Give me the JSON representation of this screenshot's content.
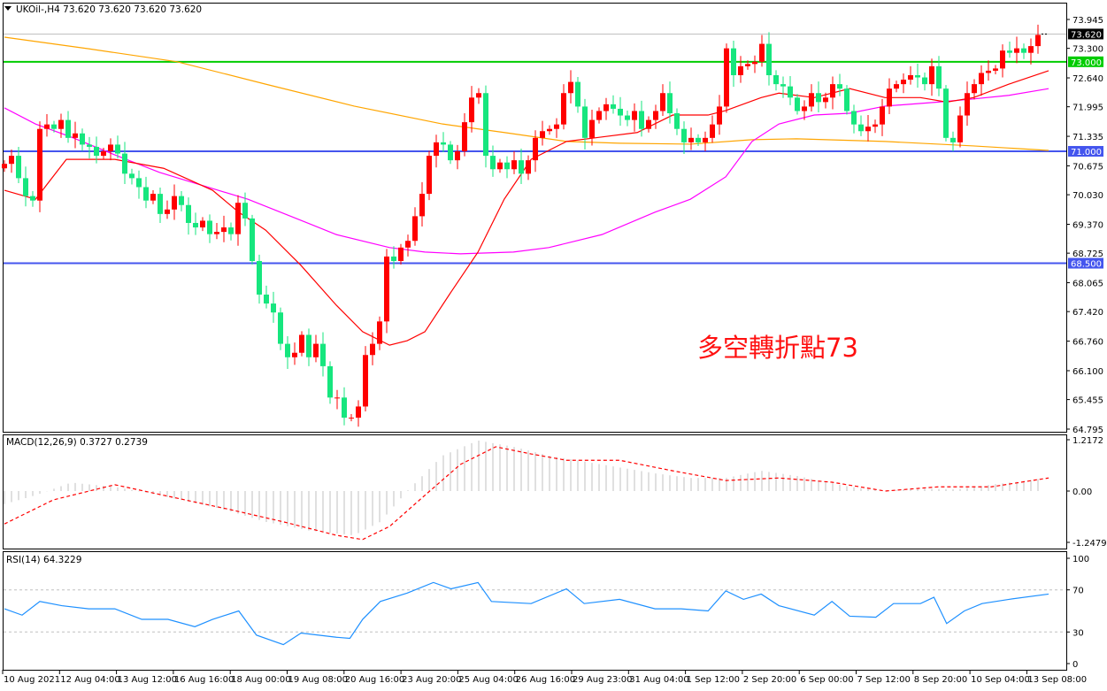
{
  "header": {
    "symbol_line": "UKOil-,H4  73.620 73.620 73.620 73.620"
  },
  "annotation": "多空轉折點73",
  "colors": {
    "bull": "#ff0000",
    "bear": "#16e67e",
    "ma_fast": "#ff0000",
    "ma_mid": "#ff00ff",
    "ma_slow": "#ffa500",
    "level_green": "#00cc00",
    "level_blue": "#4455ee",
    "macd_hist": "#c0c0c0",
    "macd_signal": "#ff0000",
    "rsi": "#1e90ff"
  },
  "chart_data": [
    {
      "type": "candlestick",
      "title": "UKOil-,H4",
      "x_tick_labels": [
        "10 Aug 2021",
        "12 Aug 04:00",
        "13 Aug 12:00",
        "16 Aug 16:00",
        "18 Aug 00:00",
        "19 Aug 08:00",
        "20 Aug 16:00",
        "23 Aug 20:00",
        "25 Aug 04:00",
        "26 Aug 16:00",
        "29 Aug 23:00",
        "31 Aug 04:00",
        "1 Sep 12:00",
        "2 Sep 20:00",
        "6 Sep 00:00",
        "7 Sep 12:00",
        "8 Sep 20:00",
        "10 Sep 04:00",
        "13 Sep 08:00"
      ],
      "y_tick_labels": [
        "73.945",
        "73.300",
        "72.640",
        "71.995",
        "71.335",
        "70.675",
        "70.030",
        "69.370",
        "68.725",
        "68.065",
        "67.420",
        "66.760",
        "66.100",
        "65.455",
        "64.795"
      ],
      "ylim": [
        64.795,
        73.945
      ],
      "close": [
        70.72,
        70.9,
        70.4,
        70.0,
        69.9,
        71.5,
        71.6,
        71.5,
        71.7,
        71.3,
        71.4,
        71.15,
        71.1,
        70.9,
        71.0,
        71.15,
        70.95,
        70.5,
        70.4,
        70.2,
        69.9,
        70.05,
        69.6,
        69.7,
        70.0,
        69.8,
        69.4,
        69.3,
        69.45,
        69.15,
        69.2,
        69.3,
        69.15,
        69.85,
        69.5,
        68.55,
        67.8,
        67.6,
        67.4,
        66.7,
        66.4,
        66.5,
        66.9,
        66.4,
        66.7,
        66.2,
        65.5,
        65.5,
        65.05,
        65.05,
        65.3,
        66.45,
        66.7,
        67.2,
        68.65,
        68.55,
        68.85,
        69.0,
        69.55,
        70.05,
        70.9,
        71.2,
        71.15,
        70.8,
        71.0,
        71.65,
        72.2,
        72.3,
        70.9,
        70.6,
        70.75,
        70.6,
        70.8,
        70.5,
        70.8,
        71.3,
        71.45,
        71.5,
        71.6,
        72.3,
        72.55,
        72.0,
        71.3,
        71.7,
        71.9,
        72.05,
        71.95,
        71.8,
        71.7,
        71.9,
        71.5,
        71.7,
        71.9,
        72.3,
        71.85,
        71.5,
        71.2,
        71.3,
        71.2,
        71.3,
        71.6,
        72.0,
        73.3,
        72.7,
        72.9,
        72.95,
        73.0,
        73.4,
        72.7,
        72.5,
        72.45,
        72.2,
        71.9,
        72.0,
        72.3,
        72.1,
        72.2,
        72.5,
        72.4,
        71.9,
        71.6,
        71.45,
        71.55,
        71.6,
        72.0,
        72.4,
        72.5,
        72.6,
        72.7,
        72.65,
        72.5,
        72.9,
        72.4,
        71.3,
        71.2,
        71.8,
        72.3,
        72.5,
        72.75,
        72.8,
        72.85,
        73.25,
        73.2,
        73.3,
        73.2,
        73.35,
        73.6
      ],
      "moving_averages": {
        "fast": [
          [
            0,
            70.13
          ],
          [
            4.4,
            69.93
          ],
          [
            8.75,
            70.82
          ],
          [
            15.6,
            70.82
          ],
          [
            22.5,
            70.62
          ],
          [
            29.4,
            70.13
          ],
          [
            33.1,
            69.64
          ],
          [
            36.9,
            69.24
          ],
          [
            41.9,
            68.45
          ],
          [
            46.9,
            67.56
          ],
          [
            50.6,
            66.97
          ],
          [
            54.4,
            66.67
          ],
          [
            56.9,
            66.77
          ],
          [
            59.4,
            66.97
          ],
          [
            63.1,
            67.86
          ],
          [
            66.9,
            68.75
          ],
          [
            70.6,
            69.93
          ],
          [
            74.4,
            70.82
          ],
          [
            79.4,
            71.22
          ],
          [
            84.4,
            71.32
          ],
          [
            89.4,
            71.42
          ],
          [
            94.4,
            71.81
          ],
          [
            99.4,
            71.81
          ],
          [
            101.9,
            71.91
          ],
          [
            106.9,
            72.2
          ],
          [
            109.4,
            72.3
          ],
          [
            114.4,
            72.2
          ],
          [
            119.4,
            72.4
          ],
          [
            124.4,
            72.2
          ],
          [
            129.4,
            72.2
          ],
          [
            133.1,
            72.1
          ],
          [
            136.9,
            72.2
          ],
          [
            141.9,
            72.5
          ],
          [
            147.5,
            72.8
          ]
        ],
        "mid": [
          [
            0,
            71.97
          ],
          [
            4.4,
            71.61
          ],
          [
            9.4,
            71.32
          ],
          [
            15.6,
            70.92
          ],
          [
            21.9,
            70.53
          ],
          [
            28.1,
            70.23
          ],
          [
            34.4,
            69.93
          ],
          [
            40.6,
            69.54
          ],
          [
            46.9,
            69.14
          ],
          [
            54.4,
            68.85
          ],
          [
            59.4,
            68.75
          ],
          [
            64.4,
            68.71
          ],
          [
            71.9,
            68.75
          ],
          [
            76.9,
            68.85
          ],
          [
            84.4,
            69.14
          ],
          [
            91.9,
            69.64
          ],
          [
            96.9,
            69.93
          ],
          [
            101.9,
            70.43
          ],
          [
            105.6,
            71.22
          ],
          [
            109.4,
            71.61
          ],
          [
            114.4,
            71.81
          ],
          [
            119.4,
            71.85
          ],
          [
            124.4,
            72.01
          ],
          [
            131.9,
            72.1
          ],
          [
            136.9,
            72.17
          ],
          [
            141.9,
            72.25
          ],
          [
            147.5,
            72.4
          ]
        ],
        "slow": [
          [
            0,
            73.55
          ],
          [
            11.9,
            73.29
          ],
          [
            24.4,
            73.0
          ],
          [
            36.9,
            72.5
          ],
          [
            49.4,
            72.01
          ],
          [
            61.9,
            71.61
          ],
          [
            70.6,
            71.42
          ],
          [
            79.4,
            71.22
          ],
          [
            86.9,
            71.18
          ],
          [
            96.9,
            71.16
          ],
          [
            105.6,
            71.26
          ],
          [
            111.9,
            71.28
          ],
          [
            124.4,
            71.22
          ],
          [
            136.9,
            71.12
          ],
          [
            147.5,
            71.02
          ]
        ]
      },
      "levels": [
        {
          "value": 73.0,
          "label": "73.000",
          "color": "green"
        },
        {
          "value": 71.0,
          "label": "71.000",
          "color": "blue"
        },
        {
          "value": 68.5,
          "label": "68.500",
          "color": "blue"
        }
      ],
      "last_price": {
        "value": 73.62,
        "label": "73.620"
      }
    },
    {
      "type": "bar",
      "title": "MACD(12,26,9) 0.3727 0.2739",
      "ylim": [
        -1.2479,
        1.2172
      ],
      "y_tick_labels": [
        "1.2172",
        "0.00",
        "-1.2479"
      ],
      "histogram": [
        [
          0,
          -0.31
        ],
        [
          4.4,
          -0.1
        ],
        [
          9.4,
          0.2
        ],
        [
          15.6,
          0.1
        ],
        [
          21.9,
          -0.1
        ],
        [
          30.6,
          -0.42
        ],
        [
          36.9,
          -0.73
        ],
        [
          43.1,
          -0.94
        ],
        [
          49.4,
          -1.05
        ],
        [
          53.1,
          -0.73
        ],
        [
          56.9,
          0
        ],
        [
          61.9,
          0.84
        ],
        [
          66.9,
          1.2
        ],
        [
          71.9,
          1.05
        ],
        [
          76.9,
          0.84
        ],
        [
          84.4,
          0.63
        ],
        [
          91.9,
          0.42
        ],
        [
          96.9,
          0.31
        ],
        [
          101.9,
          0.31
        ],
        [
          106.9,
          0.48
        ],
        [
          111.9,
          0.36
        ],
        [
          119.4,
          0.1
        ],
        [
          124.4,
          0
        ],
        [
          129.4,
          0.06
        ],
        [
          134.4,
          0.04
        ],
        [
          139.4,
          0.15
        ],
        [
          147.5,
          0.31
        ]
      ],
      "signal": [
        [
          0,
          -0.78
        ],
        [
          6.9,
          -0.21
        ],
        [
          15.6,
          0.15
        ],
        [
          24.4,
          -0.17
        ],
        [
          31.9,
          -0.44
        ],
        [
          39.4,
          -0.73
        ],
        [
          46.9,
          -1.05
        ],
        [
          50.6,
          -1.15
        ],
        [
          54.4,
          -0.84
        ],
        [
          59.4,
          -0.1
        ],
        [
          64.4,
          0.63
        ],
        [
          69.4,
          1.05
        ],
        [
          74.4,
          0.88
        ],
        [
          79.4,
          0.73
        ],
        [
          86.9,
          0.73
        ],
        [
          94.4,
          0.48
        ],
        [
          101.9,
          0.25
        ],
        [
          109.4,
          0.31
        ],
        [
          116.9,
          0.21
        ],
        [
          124.4,
          0
        ],
        [
          131.9,
          0.1
        ],
        [
          139.4,
          0.1
        ],
        [
          147.5,
          0.31
        ]
      ]
    },
    {
      "type": "line",
      "title": "RSI(14) 64.3229",
      "ylim": [
        0,
        100
      ],
      "y_tick_labels": [
        "100",
        "70",
        "30",
        "0"
      ],
      "levels": [
        70,
        30
      ],
      "values": [
        [
          0,
          52
        ],
        [
          2.5,
          46
        ],
        [
          5,
          59
        ],
        [
          8.1,
          55
        ],
        [
          11.9,
          52
        ],
        [
          15.6,
          52
        ],
        [
          19.4,
          42
        ],
        [
          23.1,
          42
        ],
        [
          26.9,
          35
        ],
        [
          29.4,
          42
        ],
        [
          33.1,
          50
        ],
        [
          35.6,
          27
        ],
        [
          39.4,
          18
        ],
        [
          41.9,
          29
        ],
        [
          44.4,
          27
        ],
        [
          46.9,
          25
        ],
        [
          48.8,
          24
        ],
        [
          50.6,
          42
        ],
        [
          53.1,
          59
        ],
        [
          56.9,
          67
        ],
        [
          60.6,
          77
        ],
        [
          63.1,
          71
        ],
        [
          66.9,
          77
        ],
        [
          68.8,
          59
        ],
        [
          74.4,
          57
        ],
        [
          79.4,
          71
        ],
        [
          81.9,
          57
        ],
        [
          86.9,
          61
        ],
        [
          91.9,
          52
        ],
        [
          95.6,
          52
        ],
        [
          99.4,
          50
        ],
        [
          101.9,
          69
        ],
        [
          104.4,
          61
        ],
        [
          106.9,
          66
        ],
        [
          109.4,
          55
        ],
        [
          114.4,
          46
        ],
        [
          116.9,
          59
        ],
        [
          119.4,
          45
        ],
        [
          123.1,
          44
        ],
        [
          125.6,
          57
        ],
        [
          129.4,
          57
        ],
        [
          131.3,
          63
        ],
        [
          133.1,
          38
        ],
        [
          135.6,
          50
        ],
        [
          138.1,
          57
        ],
        [
          141.9,
          61
        ],
        [
          147.5,
          66
        ]
      ]
    }
  ]
}
